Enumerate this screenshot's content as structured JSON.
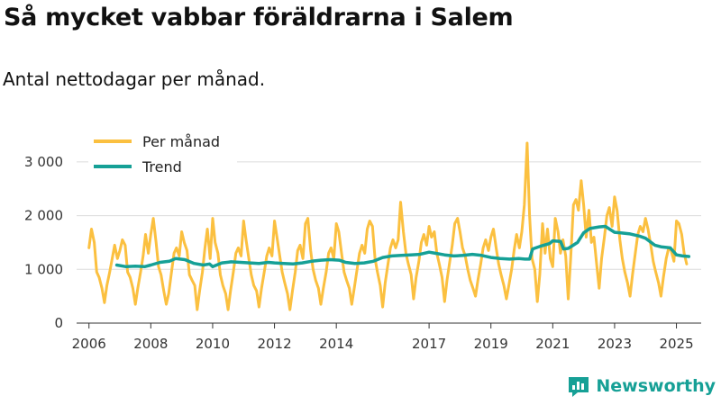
{
  "title": "Så mycket vabbar föräldrarna i Salem",
  "subtitle": "Antal nettodagar per månad.",
  "brand": "Newsworthy",
  "colors": {
    "monthly": "#fbc040",
    "trend": "#15a096",
    "grid": "#dcdcdc",
    "brand": "#16a096"
  },
  "chart_data": {
    "type": "line",
    "y_ticks": [
      0,
      1000,
      2000,
      3000
    ],
    "y_tick_labels": [
      "0",
      "1 000",
      "2 000",
      "3 000"
    ],
    "x_ticks": [
      2006,
      2008,
      2010,
      2012,
      2014,
      2017,
      2019,
      2021,
      2023,
      2025
    ],
    "xlim": [
      2005.6,
      2025.8
    ],
    "ylim": [
      0,
      3500
    ],
    "grid": true,
    "legend_position": "top-left",
    "series": [
      {
        "name": "Per månad",
        "color": "#fbc040",
        "points": [
          [
            2006.0,
            1400
          ],
          [
            2006.08,
            1750
          ],
          [
            2006.17,
            1500
          ],
          [
            2006.25,
            950
          ],
          [
            2006.33,
            850
          ],
          [
            2006.42,
            650
          ],
          [
            2006.5,
            380
          ],
          [
            2006.58,
            700
          ],
          [
            2006.67,
            950
          ],
          [
            2006.75,
            1200
          ],
          [
            2006.83,
            1450
          ],
          [
            2006.92,
            1200
          ],
          [
            2007.0,
            1350
          ],
          [
            2007.08,
            1550
          ],
          [
            2007.17,
            1450
          ],
          [
            2007.25,
            950
          ],
          [
            2007.33,
            850
          ],
          [
            2007.42,
            650
          ],
          [
            2007.5,
            350
          ],
          [
            2007.58,
            650
          ],
          [
            2007.67,
            950
          ],
          [
            2007.75,
            1250
          ],
          [
            2007.83,
            1650
          ],
          [
            2007.92,
            1300
          ],
          [
            2008.0,
            1650
          ],
          [
            2008.08,
            1950
          ],
          [
            2008.17,
            1500
          ],
          [
            2008.25,
            1050
          ],
          [
            2008.33,
            900
          ],
          [
            2008.42,
            600
          ],
          [
            2008.5,
            350
          ],
          [
            2008.58,
            550
          ],
          [
            2008.67,
            950
          ],
          [
            2008.75,
            1300
          ],
          [
            2008.83,
            1400
          ],
          [
            2008.92,
            1250
          ],
          [
            2009.0,
            1700
          ],
          [
            2009.08,
            1500
          ],
          [
            2009.17,
            1350
          ],
          [
            2009.25,
            900
          ],
          [
            2009.33,
            800
          ],
          [
            2009.42,
            700
          ],
          [
            2009.5,
            250
          ],
          [
            2009.58,
            600
          ],
          [
            2009.67,
            950
          ],
          [
            2009.75,
            1400
          ],
          [
            2009.83,
            1750
          ],
          [
            2009.92,
            1200
          ],
          [
            2010.0,
            1950
          ],
          [
            2010.08,
            1500
          ],
          [
            2010.17,
            1300
          ],
          [
            2010.25,
            900
          ],
          [
            2010.33,
            700
          ],
          [
            2010.42,
            550
          ],
          [
            2010.5,
            250
          ],
          [
            2010.58,
            600
          ],
          [
            2010.67,
            950
          ],
          [
            2010.75,
            1300
          ],
          [
            2010.83,
            1400
          ],
          [
            2010.92,
            1250
          ],
          [
            2011.0,
            1900
          ],
          [
            2011.08,
            1550
          ],
          [
            2011.17,
            1200
          ],
          [
            2011.25,
            900
          ],
          [
            2011.33,
            700
          ],
          [
            2011.42,
            600
          ],
          [
            2011.5,
            300
          ],
          [
            2011.58,
            650
          ],
          [
            2011.67,
            950
          ],
          [
            2011.75,
            1250
          ],
          [
            2011.83,
            1400
          ],
          [
            2011.92,
            1250
          ],
          [
            2012.0,
            1900
          ],
          [
            2012.08,
            1600
          ],
          [
            2012.17,
            1250
          ],
          [
            2012.25,
            950
          ],
          [
            2012.33,
            750
          ],
          [
            2012.42,
            550
          ],
          [
            2012.5,
            250
          ],
          [
            2012.58,
            600
          ],
          [
            2012.67,
            950
          ],
          [
            2012.75,
            1350
          ],
          [
            2012.83,
            1450
          ],
          [
            2012.92,
            1200
          ],
          [
            2013.0,
            1850
          ],
          [
            2013.08,
            1950
          ],
          [
            2013.17,
            1350
          ],
          [
            2013.25,
            1000
          ],
          [
            2013.33,
            800
          ],
          [
            2013.42,
            650
          ],
          [
            2013.5,
            350
          ],
          [
            2013.58,
            650
          ],
          [
            2013.67,
            950
          ],
          [
            2013.75,
            1300
          ],
          [
            2013.83,
            1400
          ],
          [
            2013.92,
            1200
          ],
          [
            2014.0,
            1850
          ],
          [
            2014.08,
            1700
          ],
          [
            2014.17,
            1300
          ],
          [
            2014.25,
            950
          ],
          [
            2014.33,
            800
          ],
          [
            2014.42,
            650
          ],
          [
            2014.5,
            350
          ],
          [
            2014.58,
            650
          ],
          [
            2014.67,
            1000
          ],
          [
            2014.75,
            1300
          ],
          [
            2014.83,
            1450
          ],
          [
            2014.92,
            1300
          ],
          [
            2015.0,
            1750
          ],
          [
            2015.08,
            1900
          ],
          [
            2015.17,
            1800
          ],
          [
            2015.25,
            1200
          ],
          [
            2015.33,
            950
          ],
          [
            2015.42,
            700
          ],
          [
            2015.5,
            300
          ],
          [
            2015.58,
            750
          ],
          [
            2015.67,
            1100
          ],
          [
            2015.75,
            1400
          ],
          [
            2015.83,
            1550
          ],
          [
            2015.92,
            1400
          ],
          [
            2016.0,
            1550
          ],
          [
            2016.08,
            2250
          ],
          [
            2016.17,
            1700
          ],
          [
            2016.25,
            1300
          ],
          [
            2016.33,
            1100
          ],
          [
            2016.42,
            900
          ],
          [
            2016.5,
            450
          ],
          [
            2016.58,
            850
          ],
          [
            2016.67,
            1150
          ],
          [
            2016.75,
            1500
          ],
          [
            2016.83,
            1650
          ],
          [
            2016.92,
            1450
          ],
          [
            2017.0,
            1800
          ],
          [
            2017.08,
            1600
          ],
          [
            2017.17,
            1700
          ],
          [
            2017.25,
            1300
          ],
          [
            2017.33,
            1100
          ],
          [
            2017.42,
            850
          ],
          [
            2017.5,
            400
          ],
          [
            2017.58,
            800
          ],
          [
            2017.67,
            1150
          ],
          [
            2017.75,
            1450
          ],
          [
            2017.83,
            1850
          ],
          [
            2017.92,
            1950
          ],
          [
            2018.0,
            1700
          ],
          [
            2018.08,
            1400
          ],
          [
            2018.17,
            1250
          ],
          [
            2018.25,
            1000
          ],
          [
            2018.33,
            800
          ],
          [
            2018.42,
            650
          ],
          [
            2018.5,
            500
          ],
          [
            2018.58,
            800
          ],
          [
            2018.67,
            1100
          ],
          [
            2018.75,
            1400
          ],
          [
            2018.83,
            1550
          ],
          [
            2018.92,
            1350
          ],
          [
            2019.0,
            1600
          ],
          [
            2019.08,
            1750
          ],
          [
            2019.17,
            1400
          ],
          [
            2019.25,
            1100
          ],
          [
            2019.33,
            900
          ],
          [
            2019.42,
            700
          ],
          [
            2019.5,
            450
          ],
          [
            2019.58,
            700
          ],
          [
            2019.67,
            1000
          ],
          [
            2019.75,
            1350
          ],
          [
            2019.83,
            1650
          ],
          [
            2019.92,
            1400
          ],
          [
            2020.0,
            1700
          ],
          [
            2020.08,
            2200
          ],
          [
            2020.17,
            3350
          ],
          [
            2020.25,
            2000
          ],
          [
            2020.33,
            1200
          ],
          [
            2020.42,
            1000
          ],
          [
            2020.5,
            400
          ],
          [
            2020.58,
            900
          ],
          [
            2020.67,
            1850
          ],
          [
            2020.75,
            1300
          ],
          [
            2020.83,
            1750
          ],
          [
            2020.92,
            1200
          ],
          [
            2021.0,
            1050
          ],
          [
            2021.08,
            1950
          ],
          [
            2021.17,
            1700
          ],
          [
            2021.25,
            1300
          ],
          [
            2021.33,
            1550
          ],
          [
            2021.42,
            1250
          ],
          [
            2021.5,
            450
          ],
          [
            2021.58,
            1200
          ],
          [
            2021.67,
            2200
          ],
          [
            2021.75,
            2300
          ],
          [
            2021.83,
            2100
          ],
          [
            2021.92,
            2650
          ],
          [
            2022.0,
            2200
          ],
          [
            2022.08,
            1600
          ],
          [
            2022.17,
            2100
          ],
          [
            2022.25,
            1500
          ],
          [
            2022.33,
            1600
          ],
          [
            2022.42,
            1100
          ],
          [
            2022.5,
            650
          ],
          [
            2022.58,
            1200
          ],
          [
            2022.67,
            1600
          ],
          [
            2022.75,
            2000
          ],
          [
            2022.83,
            2150
          ],
          [
            2022.92,
            1800
          ],
          [
            2023.0,
            2350
          ],
          [
            2023.08,
            2100
          ],
          [
            2023.17,
            1550
          ],
          [
            2023.25,
            1200
          ],
          [
            2023.33,
            950
          ],
          [
            2023.42,
            750
          ],
          [
            2023.5,
            500
          ],
          [
            2023.58,
            900
          ],
          [
            2023.67,
            1300
          ],
          [
            2023.75,
            1650
          ],
          [
            2023.83,
            1800
          ],
          [
            2023.92,
            1700
          ],
          [
            2024.0,
            1950
          ],
          [
            2024.08,
            1750
          ],
          [
            2024.17,
            1450
          ],
          [
            2024.25,
            1150
          ],
          [
            2024.33,
            950
          ],
          [
            2024.42,
            750
          ],
          [
            2024.5,
            500
          ],
          [
            2024.58,
            850
          ],
          [
            2024.67,
            1200
          ],
          [
            2024.75,
            1400
          ],
          [
            2024.83,
            1350
          ],
          [
            2024.92,
            1150
          ],
          [
            2025.0,
            1900
          ],
          [
            2025.08,
            1850
          ],
          [
            2025.17,
            1650
          ],
          [
            2025.25,
            1300
          ],
          [
            2025.33,
            1100
          ]
        ]
      },
      {
        "name": "Trend",
        "color": "#15a096",
        "points": [
          [
            2006.9,
            1080
          ],
          [
            2007.2,
            1050
          ],
          [
            2007.5,
            1060
          ],
          [
            2007.8,
            1050
          ],
          [
            2008.0,
            1080
          ],
          [
            2008.3,
            1130
          ],
          [
            2008.6,
            1150
          ],
          [
            2008.8,
            1200
          ],
          [
            2009.1,
            1180
          ],
          [
            2009.4,
            1110
          ],
          [
            2009.7,
            1080
          ],
          [
            2009.9,
            1100
          ],
          [
            2010.0,
            1050
          ],
          [
            2010.3,
            1120
          ],
          [
            2010.6,
            1140
          ],
          [
            2010.9,
            1130
          ],
          [
            2011.2,
            1120
          ],
          [
            2011.5,
            1110
          ],
          [
            2011.8,
            1130
          ],
          [
            2012.0,
            1120
          ],
          [
            2012.3,
            1110
          ],
          [
            2012.6,
            1100
          ],
          [
            2012.9,
            1120
          ],
          [
            2013.2,
            1150
          ],
          [
            2013.5,
            1170
          ],
          [
            2013.8,
            1180
          ],
          [
            2014.1,
            1170
          ],
          [
            2014.3,
            1130
          ],
          [
            2014.6,
            1110
          ],
          [
            2014.9,
            1120
          ],
          [
            2015.2,
            1150
          ],
          [
            2015.5,
            1220
          ],
          [
            2015.8,
            1250
          ],
          [
            2016.1,
            1260
          ],
          [
            2016.4,
            1270
          ],
          [
            2016.7,
            1280
          ],
          [
            2017.0,
            1320
          ],
          [
            2017.2,
            1300
          ],
          [
            2017.5,
            1270
          ],
          [
            2017.8,
            1250
          ],
          [
            2018.1,
            1260
          ],
          [
            2018.4,
            1280
          ],
          [
            2018.7,
            1260
          ],
          [
            2019.0,
            1220
          ],
          [
            2019.3,
            1200
          ],
          [
            2019.6,
            1190
          ],
          [
            2019.9,
            1200
          ],
          [
            2020.1,
            1190
          ],
          [
            2020.25,
            1190
          ],
          [
            2020.35,
            1380
          ],
          [
            2020.6,
            1430
          ],
          [
            2020.9,
            1480
          ],
          [
            2021.0,
            1530
          ],
          [
            2021.25,
            1520
          ],
          [
            2021.35,
            1380
          ],
          [
            2021.5,
            1390
          ],
          [
            2021.8,
            1500
          ],
          [
            2022.0,
            1680
          ],
          [
            2022.2,
            1760
          ],
          [
            2022.5,
            1790
          ],
          [
            2022.7,
            1800
          ],
          [
            2023.0,
            1690
          ],
          [
            2023.2,
            1680
          ],
          [
            2023.5,
            1660
          ],
          [
            2023.8,
            1620
          ],
          [
            2024.0,
            1580
          ],
          [
            2024.3,
            1450
          ],
          [
            2024.5,
            1420
          ],
          [
            2024.8,
            1400
          ],
          [
            2025.0,
            1270
          ],
          [
            2025.2,
            1250
          ],
          [
            2025.4,
            1240
          ]
        ]
      }
    ]
  }
}
